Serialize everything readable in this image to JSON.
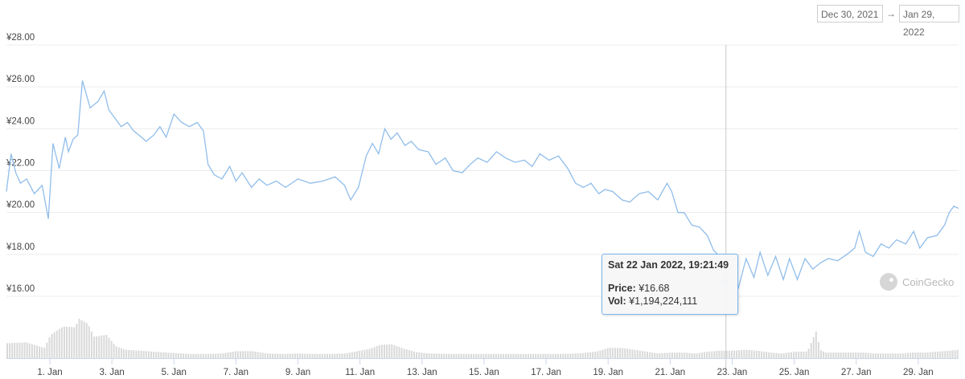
{
  "date_range": {
    "from": "Dec 30, 2021",
    "arrow": "→",
    "to": "Jan 29, 2022"
  },
  "tooltip": {
    "title": "Sat 22 Jan 2022, 19:21:49",
    "price_label": "Price:",
    "price_value": "¥16.68",
    "vol_label": "Vol:",
    "vol_value": "¥1,194,224,111"
  },
  "watermark": "CoinGecko",
  "colors": {
    "line": "#90bdea",
    "volume": "#d9d9d9",
    "grid": "#ececec",
    "crosshair": "#c8c8c8",
    "marker": "#7cb5ec"
  },
  "chart_data": {
    "type": "line",
    "title": "",
    "xlabel": "",
    "ylabel": "",
    "y_ticks": [
      "¥16.00",
      "¥18.00",
      "¥20.00",
      "¥22.00",
      "¥24.00",
      "¥26.00",
      "¥28.00"
    ],
    "ylim": [
      16,
      28
    ],
    "x_ticks": [
      "1. Jan",
      "3. Jan",
      "5. Jan",
      "7. Jan",
      "9. Jan",
      "11. Jan",
      "13. Jan",
      "15. Jan",
      "17. Jan",
      "19. Jan",
      "21. Jan",
      "23. Jan",
      "25. Jan",
      "27. Jan",
      "29. Jan"
    ],
    "x_tick_days": [
      1,
      3,
      5,
      7,
      9,
      11,
      13,
      15,
      17,
      19,
      21,
      23,
      25,
      27,
      29
    ],
    "x_unit": "day of January 2022",
    "xlim": [
      -0.4,
      30.3
    ],
    "grid": true,
    "legend": "none",
    "series": [
      {
        "x": [
          -0.4,
          -0.25,
          -0.1,
          0.05,
          0.25,
          0.5,
          0.75,
          0.95,
          1.1,
          1.3,
          1.5,
          1.6,
          1.75,
          1.9,
          2.05,
          2.3,
          2.55,
          2.75,
          2.9,
          3.1,
          3.3,
          3.5,
          3.7,
          3.95,
          4.1,
          4.35,
          4.55,
          4.75,
          5.0,
          5.25,
          5.5,
          5.75,
          5.95,
          6.1,
          6.3,
          6.55,
          6.8,
          7.0,
          7.2,
          7.5,
          7.75,
          8.0,
          8.3,
          8.6,
          9.0,
          9.4,
          9.8,
          10.2,
          10.5,
          10.7,
          10.95,
          11.2,
          11.4,
          11.6,
          11.8,
          12.0,
          12.2,
          12.45,
          12.65,
          12.9,
          13.2,
          13.45,
          13.75,
          14.0,
          14.3,
          14.55,
          14.8,
          15.1,
          15.4,
          15.7,
          16.0,
          16.3,
          16.55,
          16.8,
          17.1,
          17.4,
          17.7,
          17.95,
          18.2,
          18.45,
          18.7,
          18.9,
          19.15,
          19.45,
          19.7,
          20.0,
          20.3,
          20.6,
          20.9,
          21.05,
          21.25,
          21.45,
          21.7,
          21.95,
          22.2,
          22.4,
          22.6,
          22.8,
          23.0,
          23.2,
          23.45,
          23.7,
          23.9,
          24.15,
          24.4,
          24.65,
          24.85,
          25.1,
          25.35,
          25.6,
          25.85,
          26.1,
          26.4,
          26.7,
          26.95,
          27.1,
          27.3,
          27.55,
          27.8,
          28.05,
          28.3,
          28.6,
          28.85,
          29.05,
          29.3,
          29.6,
          29.85,
          30.0,
          30.15,
          30.3
        ],
        "y": [
          21.0,
          22.8,
          21.9,
          21.4,
          21.6,
          20.9,
          21.3,
          19.7,
          23.3,
          22.1,
          23.6,
          22.9,
          23.5,
          23.7,
          26.3,
          25.0,
          25.3,
          25.8,
          24.9,
          24.5,
          24.1,
          24.3,
          23.9,
          23.6,
          23.4,
          23.7,
          24.1,
          23.6,
          24.7,
          24.3,
          24.1,
          24.3,
          23.9,
          22.3,
          21.8,
          21.6,
          22.2,
          21.5,
          21.9,
          21.2,
          21.6,
          21.3,
          21.5,
          21.2,
          21.6,
          21.4,
          21.5,
          21.7,
          21.3,
          20.6,
          21.2,
          22.7,
          23.3,
          22.8,
          24.0,
          23.5,
          23.8,
          23.2,
          23.4,
          23.0,
          22.9,
          22.3,
          22.6,
          22.0,
          21.9,
          22.3,
          22.6,
          22.4,
          22.9,
          22.6,
          22.4,
          22.5,
          22.2,
          22.8,
          22.5,
          22.7,
          22.1,
          21.4,
          21.2,
          21.4,
          20.9,
          21.1,
          21.0,
          20.6,
          20.5,
          20.9,
          21.0,
          20.6,
          21.4,
          21.0,
          20.0,
          20.0,
          19.4,
          19.3,
          18.9,
          18.2,
          17.9,
          16.6,
          16.9,
          16.4,
          17.8,
          16.9,
          18.1,
          17.0,
          17.9,
          16.8,
          17.8,
          16.8,
          17.8,
          17.3,
          17.6,
          17.8,
          17.7,
          18.0,
          18.3,
          19.1,
          18.1,
          17.9,
          18.5,
          18.3,
          18.7,
          18.5,
          19.1,
          18.3,
          18.8,
          18.9,
          19.4,
          20.0,
          20.3,
          20.2
        ],
        "vol_x": [
          -0.4,
          0.2,
          0.8,
          1.0,
          1.4,
          1.8,
          1.9,
          2.2,
          2.4,
          2.8,
          3.1,
          3.4,
          3.9,
          4.5,
          5.0,
          5.5,
          6.0,
          6.5,
          7.0,
          7.5,
          8.0,
          8.5,
          9.0,
          9.5,
          10.0,
          10.5,
          10.9,
          11.3,
          11.6,
          12.0,
          12.4,
          12.8,
          13.2,
          13.8,
          14.4,
          15.0,
          15.6,
          16.2,
          16.8,
          17.4,
          18.0,
          18.6,
          19.0,
          19.4,
          19.8,
          20.2,
          20.6,
          21.0,
          21.4,
          21.8,
          22.2,
          22.6,
          23.0,
          23.4,
          23.8,
          24.2,
          24.6,
          25.0,
          25.4,
          25.7,
          25.8,
          26.0,
          26.4,
          26.8,
          27.2,
          27.6,
          28.0,
          28.4,
          28.8,
          29.2,
          29.6,
          30.0,
          30.3
        ],
        "vol": [
          0.32,
          0.34,
          0.22,
          0.5,
          0.68,
          0.66,
          0.85,
          0.74,
          0.46,
          0.5,
          0.26,
          0.18,
          0.16,
          0.13,
          0.11,
          0.09,
          0.09,
          0.1,
          0.15,
          0.15,
          0.1,
          0.09,
          0.1,
          0.09,
          0.09,
          0.1,
          0.15,
          0.2,
          0.28,
          0.3,
          0.2,
          0.13,
          0.1,
          0.09,
          0.09,
          0.09,
          0.09,
          0.09,
          0.09,
          0.09,
          0.1,
          0.14,
          0.22,
          0.22,
          0.18,
          0.14,
          0.1,
          0.12,
          0.12,
          0.1,
          0.14,
          0.16,
          0.16,
          0.18,
          0.16,
          0.12,
          0.1,
          0.14,
          0.14,
          0.6,
          0.18,
          0.12,
          0.12,
          0.12,
          0.12,
          0.1,
          0.1,
          0.1,
          0.12,
          0.12,
          0.14,
          0.16,
          0.18
        ]
      }
    ],
    "highlight": {
      "x": 22.8,
      "y": 16.68
    }
  }
}
